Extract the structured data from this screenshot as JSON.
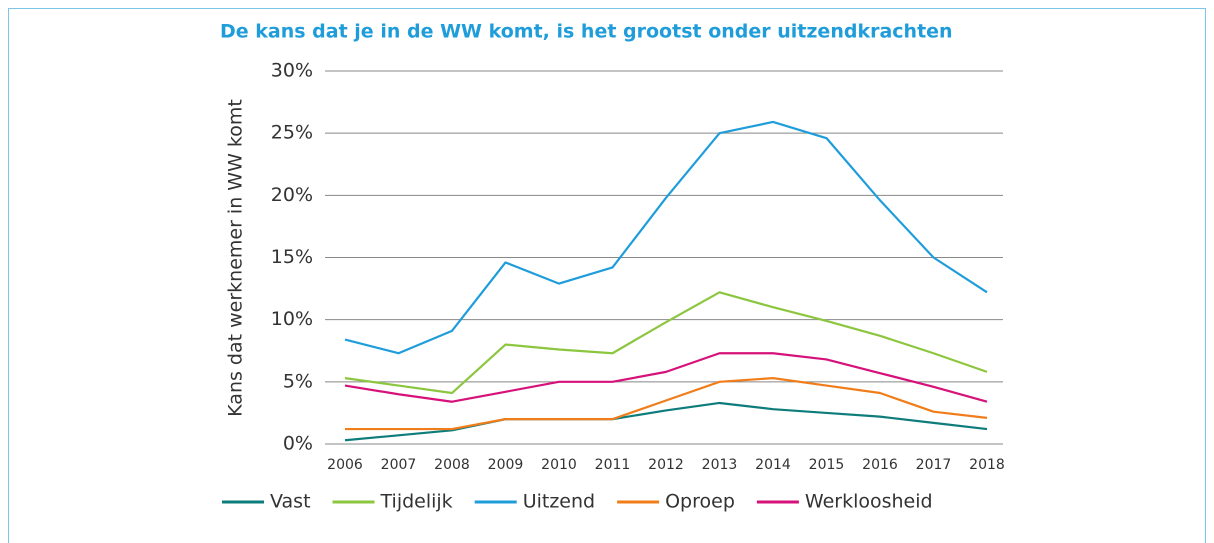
{
  "chart_data": {
    "type": "line",
    "title": "De kans dat je in de WW komt, is het grootst onder uitzendkrachten",
    "ylabel": "Kans dat werknemer in WW komt",
    "x": [
      2006,
      2007,
      2008,
      2009,
      2010,
      2011,
      2012,
      2013,
      2014,
      2015,
      2016,
      2017,
      2018
    ],
    "xlim": [
      2006,
      2018
    ],
    "xticks": [
      2006,
      2007,
      2008,
      2009,
      2010,
      2011,
      2012,
      2013,
      2014,
      2015,
      2016,
      2017,
      2018
    ],
    "ylim": [
      0,
      30
    ],
    "yticks": [
      {
        "value": 0,
        "label": "0%"
      },
      {
        "value": 5,
        "label": "5%"
      },
      {
        "value": 10,
        "label": "10%"
      },
      {
        "value": 15,
        "label": "15%"
      },
      {
        "value": 20,
        "label": "20%"
      },
      {
        "value": 25,
        "label": "25%"
      },
      {
        "value": 30,
        "label": "30%"
      }
    ],
    "grid": true,
    "legend": "bottom",
    "series": [
      {
        "name": "Vast",
        "color": "#0e7c7b",
        "values": [
          0.3,
          0.7,
          1.1,
          2.0,
          2.0,
          2.0,
          2.7,
          3.3,
          2.8,
          2.5,
          2.2,
          1.7,
          1.2
        ]
      },
      {
        "name": "Tijdelijk",
        "color": "#8cc63f",
        "values": [
          5.3,
          4.7,
          4.1,
          8.0,
          7.6,
          7.3,
          9.8,
          12.2,
          11.0,
          9.9,
          8.7,
          7.3,
          5.8
        ]
      },
      {
        "name": "Uitzend",
        "color": "#1f9ddb",
        "values": [
          8.4,
          7.3,
          9.1,
          14.6,
          12.9,
          14.2,
          19.8,
          25.0,
          25.9,
          24.6,
          19.6,
          15.0,
          12.2
        ]
      },
      {
        "name": "Oproep",
        "color": "#f07d1a",
        "values": [
          1.2,
          1.2,
          1.2,
          2.0,
          2.0,
          2.0,
          3.5,
          5.0,
          5.3,
          4.7,
          4.1,
          2.6,
          2.1
        ]
      },
      {
        "name": "Werkloosheid",
        "color": "#d6127a",
        "values": [
          4.7,
          4.0,
          3.4,
          4.2,
          5.0,
          5.0,
          5.8,
          7.3,
          7.3,
          6.8,
          5.7,
          4.6,
          3.4
        ]
      }
    ]
  }
}
